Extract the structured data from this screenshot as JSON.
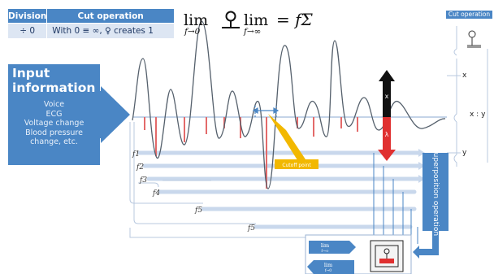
{
  "table": {
    "headers": [
      "Division",
      "Cut operation"
    ],
    "row": [
      "÷ 0",
      "With 0 ≡ ∞, ♀ creates 1"
    ]
  },
  "formula": {
    "lim_text": "lim",
    "sub_left": "f→0",
    "sub_right": "f→∞",
    "rhs": "= fΣ"
  },
  "input": {
    "title_line1": "Input",
    "title_line2": "information",
    "items": [
      "Voice",
      "ECG",
      "Voltage change",
      "Blood pressure",
      "change, etc."
    ]
  },
  "frequency_labels": [
    "f1",
    "f2",
    "f3",
    "f4",
    "f5",
    "f5"
  ],
  "callout": {
    "text": "Cutoff point"
  },
  "arrow_labels": {
    "up": "x",
    "down": "λ"
  },
  "right_panel": {
    "title": "Cut operation",
    "x_label": "x",
    "y_label": "y",
    "ratio": "x : y"
  },
  "superposition": {
    "label": "Superposition operation"
  },
  "bottom_boxes": [
    {
      "lim": "lim",
      "sub": "f→∞"
    },
    {
      "lim": "lim",
      "sub": "f→0"
    }
  ],
  "colors": {
    "accent": "#4a86c5",
    "light_accent": "#c5d6ec",
    "wave_red": "#e06060",
    "callout": "#f2b800"
  }
}
